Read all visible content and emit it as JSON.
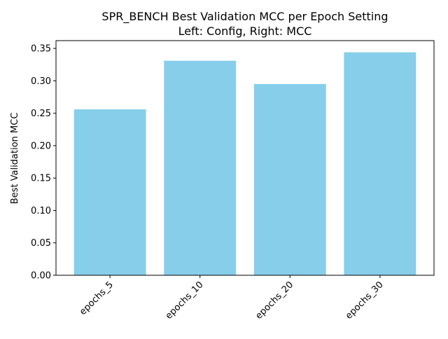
{
  "chart_data": {
    "type": "bar",
    "title": "SPR_BENCH Best Validation MCC per Epoch Setting",
    "subtitle": "Left: Config, Right: MCC",
    "xlabel": "",
    "ylabel": "Best Validation MCC",
    "categories": [
      "epochs_5",
      "epochs_10",
      "epochs_20",
      "epochs_30"
    ],
    "values": [
      0.256,
      0.331,
      0.295,
      0.344
    ],
    "ylim": [
      0,
      0.362
    ],
    "yticks": [
      "0.00",
      "0.05",
      "0.10",
      "0.15",
      "0.20",
      "0.25",
      "0.30",
      "0.35"
    ],
    "bar_color": "#87ceeb",
    "grid": false,
    "legend": "none",
    "xtick_rotation_deg": 45
  }
}
